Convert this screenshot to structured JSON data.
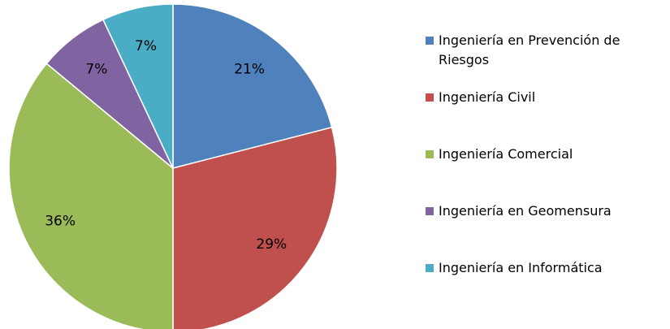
{
  "chart_data": {
    "type": "pie",
    "categories": [
      "Ingeniería en Prevención de Riesgos",
      "Ingeniería Civil",
      "Ingeniería Comercial",
      "Ingeniería en Geomensura",
      "Ingeniería en Informática"
    ],
    "values": [
      21,
      29,
      36,
      7,
      7
    ],
    "value_labels": [
      "21%",
      "29%",
      "36%",
      "7%",
      "7%"
    ],
    "colors": [
      "#4f81bd",
      "#c0504d",
      "#9bbb59",
      "#8064a2",
      "#4bacc6"
    ],
    "legend": "right"
  }
}
